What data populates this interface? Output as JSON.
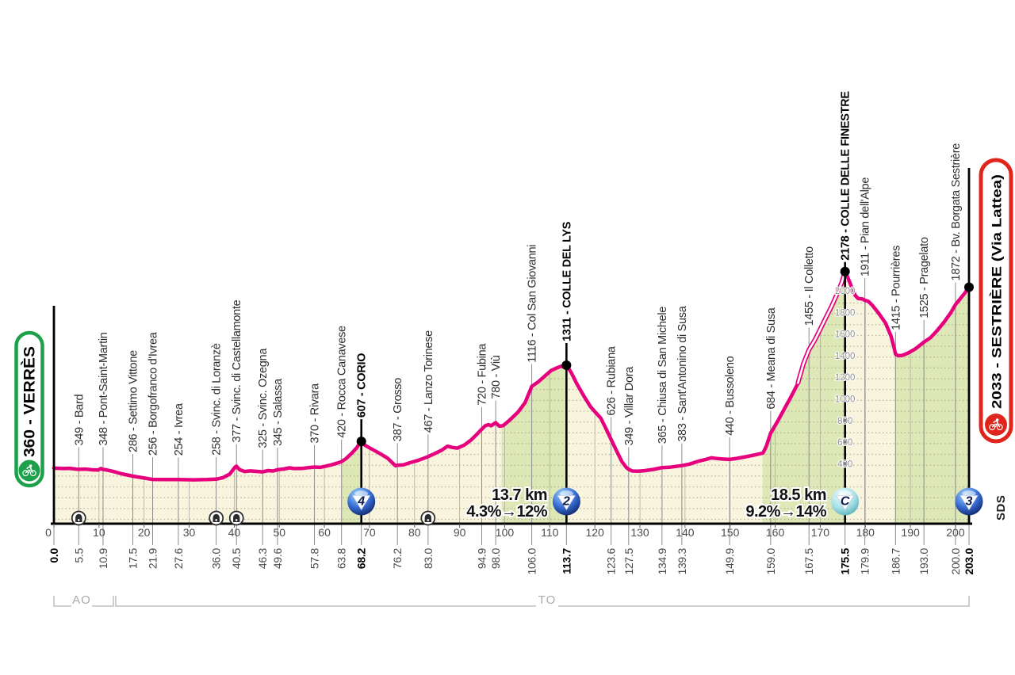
{
  "stage": {
    "start_label": "360 - VERRÈS",
    "finish_label": "2033 - SESTRIÈRE (Via Lattea)",
    "side_label": "SDS"
  },
  "provinces": {
    "left": "AO",
    "right": "TO"
  },
  "climb_stats": [
    {
      "line1": "13.7 km",
      "line2": "4.3%→12%"
    },
    {
      "line1": "18.5 km",
      "line2": "9.2%→14%"
    }
  ],
  "chart_data": {
    "type": "area",
    "title": "Stage profile Verrès - Sestrière (Via Lattea)",
    "x_axis": {
      "unit": "km",
      "range": [
        0,
        203
      ],
      "major_tick_step": 10
    },
    "y_axis": {
      "unit": "m",
      "scale_labels": [
        400,
        600,
        800,
        1000,
        1200,
        1400,
        1600,
        1800,
        2000
      ]
    },
    "start": {
      "km": 0.0,
      "elev": 360
    },
    "finish": {
      "km": 203.0,
      "elev": 2033
    },
    "waypoints": [
      {
        "km": 5.5,
        "elev": 349,
        "label": "349 - Bard"
      },
      {
        "km": 10.9,
        "elev": 348,
        "label": "348 - Pont-Saint-Martin"
      },
      {
        "km": 17.5,
        "elev": 286,
        "label": "286 - Settimo Vittone"
      },
      {
        "km": 21.9,
        "elev": 256,
        "label": "256 - Borgofranco d'Ivrea"
      },
      {
        "km": 27.6,
        "elev": 254,
        "label": "254 - Ivrea"
      },
      {
        "km": 36.0,
        "elev": 258,
        "label": "258 - Svinc. di Loranzè"
      },
      {
        "km": 40.5,
        "elev": 377,
        "label": "377 - Svinc. di Castellamonte"
      },
      {
        "km": 46.3,
        "elev": 325,
        "label": "325 - Svinc. Ozegna"
      },
      {
        "km": 49.6,
        "elev": 345,
        "label": "345 - Salassa"
      },
      {
        "km": 57.8,
        "elev": 370,
        "label": "370 - Rivara"
      },
      {
        "km": 63.8,
        "elev": 420,
        "label": "420 - Rocca Canavese"
      },
      {
        "km": 68.2,
        "elev": 607,
        "label": "607 - CORIO",
        "summit": true
      },
      {
        "km": 76.2,
        "elev": 387,
        "label": "387 - Grosso"
      },
      {
        "km": 83.0,
        "elev": 467,
        "label": "467 - Lanzo Torinese"
      },
      {
        "km": 94.9,
        "elev": 720,
        "label": "720 - Fubina"
      },
      {
        "km": 98.0,
        "elev": 780,
        "label": "780 - Viù"
      },
      {
        "km": 106.0,
        "elev": 1116,
        "label": "1116 - Col San Giovanni"
      },
      {
        "km": 113.7,
        "elev": 1311,
        "label": "1311 - COLLE DEL LYS",
        "summit": true
      },
      {
        "km": 123.6,
        "elev": 626,
        "label": "626 - Rubiana"
      },
      {
        "km": 127.5,
        "elev": 349,
        "label": "349 - Villar Dora"
      },
      {
        "km": 134.9,
        "elev": 365,
        "label": "365 - Chiusa di San Michele"
      },
      {
        "km": 139.3,
        "elev": 383,
        "label": "383 - Sant'Antonino di Susa"
      },
      {
        "km": 149.9,
        "elev": 440,
        "label": "440 - Bussoleno"
      },
      {
        "km": 159.0,
        "elev": 684,
        "label": "684 - Meana di Susa"
      },
      {
        "km": 167.5,
        "elev": 1455,
        "label": "1455 - Il Colletto"
      },
      {
        "km": 175.5,
        "elev": 2178,
        "label": "2178 - COLLE DELLE FINESTRE",
        "summit": true,
        "gap": 14
      },
      {
        "km": 179.9,
        "elev": 1911,
        "label": "1911 - Pian dell'Alpe"
      },
      {
        "km": 186.7,
        "elev": 1415,
        "label": "1415 - Pourrières"
      },
      {
        "km": 193.0,
        "elev": 1525,
        "label": "1525 - Pragelato"
      },
      {
        "km": 200.0,
        "elev": 1872,
        "label": "1872 - Bv. Borgata Sestrière"
      }
    ],
    "km_marks": [
      {
        "km": 0.0,
        "label": "0.0",
        "bold": true
      },
      {
        "km": 5.5,
        "label": "5.5"
      },
      {
        "km": 10.9,
        "label": "10.9"
      },
      {
        "km": 17.5,
        "label": "17.5"
      },
      {
        "km": 21.9,
        "label": "21.9"
      },
      {
        "km": 27.6,
        "label": "27.6"
      },
      {
        "km": 36.0,
        "label": "36.0"
      },
      {
        "km": 40.5,
        "label": "40.5"
      },
      {
        "km": 46.3,
        "label": "46.3"
      },
      {
        "km": 49.6,
        "label": "49.6"
      },
      {
        "km": 57.8,
        "label": "57.8"
      },
      {
        "km": 63.8,
        "label": "63.8"
      },
      {
        "km": 68.2,
        "label": "68.2",
        "bold": true
      },
      {
        "km": 76.2,
        "label": "76.2"
      },
      {
        "km": 83.0,
        "label": "83.0"
      },
      {
        "km": 94.9,
        "label": "94.9"
      },
      {
        "km": 98.0,
        "label": "98.0"
      },
      {
        "km": 106.0,
        "label": "106.0"
      },
      {
        "km": 113.7,
        "label": "113.7",
        "bold": true
      },
      {
        "km": 123.6,
        "label": "123.6"
      },
      {
        "km": 127.5,
        "label": "127.5"
      },
      {
        "km": 134.9,
        "label": "134.9"
      },
      {
        "km": 139.3,
        "label": "139.3"
      },
      {
        "km": 149.9,
        "label": "149.9"
      },
      {
        "km": 159.0,
        "label": "159.0"
      },
      {
        "km": 167.5,
        "label": "167.5"
      },
      {
        "km": 175.5,
        "label": "175.5",
        "bold": true
      },
      {
        "km": 179.9,
        "label": "179.9"
      },
      {
        "km": 186.7,
        "label": "186.7"
      },
      {
        "km": 193.0,
        "label": "193.0"
      },
      {
        "km": 200.0,
        "label": "200.0"
      },
      {
        "km": 203.0,
        "label": "203.0",
        "bold": true
      }
    ],
    "climb_fills": [
      {
        "from": 63.8,
        "to": 68.2
      },
      {
        "from": 99.3,
        "to": 113.7
      },
      {
        "from": 157.2,
        "to": 175.5
      },
      {
        "from": 186.7,
        "to": 203.0
      }
    ],
    "sterrato": {
      "from": 164.5,
      "to": 175.5
    },
    "badges": [
      {
        "km": 68.2,
        "label": "4",
        "type": "blue"
      },
      {
        "km": 113.7,
        "label": "2",
        "type": "blue"
      },
      {
        "km": 175.5,
        "label": "C",
        "type": "cyan"
      },
      {
        "km": 203.0,
        "label": "3",
        "type": "blue"
      }
    ],
    "tunnels_km": [
      5.5,
      36.0,
      40.5,
      83.0
    ],
    "elevation_scale_km": 175.5,
    "profile": [
      [
        0,
        360
      ],
      [
        2,
        356
      ],
      [
        3.5,
        358
      ],
      [
        5,
        350
      ],
      [
        5.5,
        349
      ],
      [
        7,
        351
      ],
      [
        8.5,
        344
      ],
      [
        9.8,
        342
      ],
      [
        10.4,
        356
      ],
      [
        10.9,
        348
      ],
      [
        11.5,
        344
      ],
      [
        13,
        331
      ],
      [
        15,
        308
      ],
      [
        17.5,
        286
      ],
      [
        19.5,
        272
      ],
      [
        21.9,
        256
      ],
      [
        24,
        254
      ],
      [
        27.6,
        254
      ],
      [
        31,
        252
      ],
      [
        34,
        254
      ],
      [
        36,
        258
      ],
      [
        37.5,
        272
      ],
      [
        39,
        305
      ],
      [
        40.2,
        370
      ],
      [
        40.5,
        377
      ],
      [
        41.2,
        345
      ],
      [
        42.3,
        329
      ],
      [
        43.5,
        334
      ],
      [
        45,
        330
      ],
      [
        46.3,
        325
      ],
      [
        47.5,
        337
      ],
      [
        48.6,
        333
      ],
      [
        49.6,
        345
      ],
      [
        51,
        352
      ],
      [
        52.3,
        363
      ],
      [
        53.2,
        356
      ],
      [
        55,
        357
      ],
      [
        56.5,
        365
      ],
      [
        57.8,
        370
      ],
      [
        59,
        367
      ],
      [
        60.3,
        378
      ],
      [
        61.5,
        390
      ],
      [
        63,
        408
      ],
      [
        63.8,
        420
      ],
      [
        64.8,
        448
      ],
      [
        66,
        495
      ],
      [
        67,
        540
      ],
      [
        68.2,
        607
      ],
      [
        69,
        572
      ],
      [
        70,
        548
      ],
      [
        71,
        525
      ],
      [
        72.5,
        490
      ],
      [
        74,
        452
      ],
      [
        75.3,
        400
      ],
      [
        75.8,
        382
      ],
      [
        76.2,
        387
      ],
      [
        77.5,
        390
      ],
      [
        79,
        410
      ],
      [
        80.5,
        428
      ],
      [
        82,
        450
      ],
      [
        83,
        467
      ],
      [
        84.5,
        495
      ],
      [
        86,
        525
      ],
      [
        87.3,
        563
      ],
      [
        88.3,
        552
      ],
      [
        89.5,
        545
      ],
      [
        91,
        572
      ],
      [
        92.5,
        618
      ],
      [
        93.8,
        672
      ],
      [
        94.9,
        720
      ],
      [
        95.7,
        752
      ],
      [
        96.4,
        762
      ],
      [
        97,
        752
      ],
      [
        98,
        780
      ],
      [
        98.8,
        748
      ],
      [
        99.6,
        752
      ],
      [
        100.5,
        782
      ],
      [
        101.5,
        820
      ],
      [
        103,
        880
      ],
      [
        104.5,
        965
      ],
      [
        106,
        1116
      ],
      [
        107.5,
        1160
      ],
      [
        109,
        1215
      ],
      [
        110.3,
        1262
      ],
      [
        111.5,
        1285
      ],
      [
        112.5,
        1302
      ],
      [
        113.1,
        1295
      ],
      [
        113.7,
        1311
      ],
      [
        114.8,
        1240
      ],
      [
        116,
        1140
      ],
      [
        117.5,
        1030
      ],
      [
        119,
        930
      ],
      [
        120.3,
        868
      ],
      [
        121.3,
        822
      ],
      [
        122.3,
        740
      ],
      [
        123.6,
        626
      ],
      [
        124.8,
        520
      ],
      [
        126,
        420
      ],
      [
        127,
        365
      ],
      [
        127.5,
        349
      ],
      [
        128.3,
        333
      ],
      [
        129.5,
        331
      ],
      [
        131,
        336
      ],
      [
        133,
        348
      ],
      [
        134.9,
        365
      ],
      [
        136.5,
        368
      ],
      [
        138,
        376
      ],
      [
        139.3,
        383
      ],
      [
        141,
        397
      ],
      [
        143,
        424
      ],
      [
        144.8,
        442
      ],
      [
        145.8,
        455
      ],
      [
        147,
        449
      ],
      [
        148.3,
        444
      ],
      [
        149.9,
        440
      ],
      [
        151.5,
        450
      ],
      [
        153.5,
        465
      ],
      [
        155.5,
        482
      ],
      [
        157.3,
        500
      ],
      [
        158,
        560
      ],
      [
        159,
        684
      ],
      [
        160.5,
        790
      ],
      [
        162,
        905
      ],
      [
        163.5,
        1020
      ],
      [
        165,
        1140
      ],
      [
        166.3,
        1330
      ],
      [
        167.5,
        1455
      ],
      [
        168.8,
        1545
      ],
      [
        170,
        1645
      ],
      [
        171.3,
        1755
      ],
      [
        172.5,
        1855
      ],
      [
        173.8,
        1975
      ],
      [
        174.8,
        2080
      ],
      [
        175.5,
        2178
      ],
      [
        176.2,
        2115
      ],
      [
        177,
        2030
      ],
      [
        177.8,
        1955
      ],
      [
        178.4,
        1928
      ],
      [
        179.4,
        1924
      ],
      [
        179.9,
        1911
      ],
      [
        180.6,
        1903
      ],
      [
        181.5,
        1868
      ],
      [
        183,
        1790
      ],
      [
        184.5,
        1700
      ],
      [
        185.7,
        1580
      ],
      [
        186.4,
        1470
      ],
      [
        186.7,
        1415
      ],
      [
        187.3,
        1399
      ],
      [
        188.2,
        1402
      ],
      [
        189.5,
        1425
      ],
      [
        191,
        1460
      ],
      [
        192,
        1492
      ],
      [
        193,
        1525
      ],
      [
        194.5,
        1568
      ],
      [
        196,
        1635
      ],
      [
        197.5,
        1712
      ],
      [
        199,
        1800
      ],
      [
        200,
        1872
      ],
      [
        201,
        1922
      ],
      [
        202,
        1975
      ],
      [
        203,
        2033
      ]
    ],
    "colors": {
      "profile_pink": "#e6007e",
      "fill_beige": "#f8f4de",
      "fill_green": "#dde8b6",
      "start_green": "#1ca04a",
      "finish_red": "#e0251c",
      "badge_blue_dark": "#122c74",
      "badge_cyan": "#9edbe2"
    }
  }
}
